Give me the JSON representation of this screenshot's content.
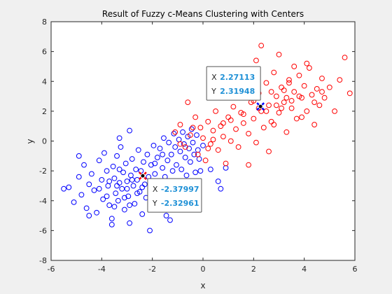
{
  "chart_data": {
    "type": "scatter",
    "title": "Result of Fuzzy c-Means Clustering with Centers",
    "xlabel": "x",
    "ylabel": "y",
    "xlim": [
      -6,
      6
    ],
    "ylim": [
      -8,
      8
    ],
    "xticks": [
      "-6",
      "-4",
      "-2",
      "0",
      "2",
      "4",
      "6"
    ],
    "yticks": [
      "-8",
      "-6",
      "-4",
      "-2",
      "0",
      "2",
      "4",
      "6",
      "8"
    ],
    "grid": false,
    "series": [
      {
        "color": "#0000ff",
        "marker": "circle-open",
        "points": [
          [
            -5.3,
            -3.1
          ],
          [
            -5.1,
            -4.1
          ],
          [
            -4.9,
            -2.4
          ],
          [
            -4.8,
            -3.6
          ],
          [
            -4.7,
            -1.6
          ],
          [
            -4.6,
            -4.5
          ],
          [
            -4.5,
            -2.9
          ],
          [
            -4.4,
            -2.2
          ],
          [
            -4.3,
            -3.3
          ],
          [
            -4.2,
            -4.8
          ],
          [
            -4.1,
            -1.3
          ],
          [
            -4.0,
            -2.6
          ],
          [
            -3.95,
            -3.9
          ],
          [
            -3.9,
            -0.8
          ],
          [
            -3.8,
            -2.0
          ],
          [
            -3.75,
            -3.0
          ],
          [
            -3.7,
            -4.3
          ],
          [
            -3.6,
            -5.2
          ],
          [
            -3.55,
            -1.7
          ],
          [
            -3.5,
            -2.5
          ],
          [
            -3.45,
            -3.5
          ],
          [
            -3.4,
            -1.0
          ],
          [
            -3.35,
            -4.0
          ],
          [
            -3.3,
            -2.8
          ],
          [
            -3.25,
            -0.4
          ],
          [
            -3.2,
            -3.2
          ],
          [
            -3.15,
            -2.1
          ],
          [
            -3.1,
            -4.6
          ],
          [
            -3.05,
            -1.5
          ],
          [
            -3.0,
            -2.7
          ],
          [
            -2.95,
            -3.7
          ],
          [
            -2.9,
            -5.5
          ],
          [
            -2.85,
            -2.3
          ],
          [
            -2.8,
            -1.2
          ],
          [
            -2.75,
            -3.0
          ],
          [
            -2.7,
            -4.2
          ],
          [
            -2.65,
            -1.9
          ],
          [
            -2.6,
            -2.6
          ],
          [
            -2.55,
            -0.6
          ],
          [
            -2.5,
            -3.4
          ],
          [
            -2.45,
            -2.0
          ],
          [
            -2.4,
            -4.9
          ],
          [
            -2.35,
            -1.4
          ],
          [
            -2.3,
            -2.9
          ],
          [
            -2.25,
            -3.8
          ],
          [
            -2.2,
            -0.9
          ],
          [
            -2.15,
            -2.4
          ],
          [
            -2.1,
            -6.0
          ],
          [
            -2.05,
            -1.6
          ],
          [
            -2.0,
            -3.1
          ],
          [
            -1.95,
            -0.3
          ],
          [
            -1.9,
            -2.2
          ],
          [
            -1.85,
            -4.4
          ],
          [
            -1.8,
            -1.1
          ],
          [
            -1.75,
            -2.7
          ],
          [
            -1.7,
            -0.5
          ],
          [
            -1.65,
            -3.3
          ],
          [
            -1.6,
            -1.8
          ],
          [
            -1.55,
            0.2
          ],
          [
            -1.5,
            -2.4
          ],
          [
            -1.45,
            -5.0
          ],
          [
            -1.4,
            -1.3
          ],
          [
            -1.35,
            -0.1
          ],
          [
            -1.3,
            -3.6
          ],
          [
            -1.25,
            -0.9
          ],
          [
            -1.2,
            -2.0
          ],
          [
            -1.15,
            0.5
          ],
          [
            -1.1,
            -0.4
          ],
          [
            -1.05,
            -1.6
          ],
          [
            -1.0,
            -2.8
          ],
          [
            -0.95,
            0.1
          ],
          [
            -0.9,
            -0.7
          ],
          [
            -0.85,
            -1.9
          ],
          [
            -0.8,
            0.6
          ],
          [
            -0.75,
            -0.2
          ],
          [
            -0.7,
            -1.1
          ],
          [
            -0.65,
            -2.3
          ],
          [
            -0.6,
            0.3
          ],
          [
            -0.55,
            -0.5
          ],
          [
            -0.5,
            -1.4
          ],
          [
            -0.45,
            0.8
          ],
          [
            -0.4,
            -0.1
          ],
          [
            -0.35,
            -0.9
          ],
          [
            -0.3,
            -2.1
          ],
          [
            -0.25,
            0.4
          ],
          [
            -0.2,
            -0.6
          ],
          [
            -0.15,
            -1.2
          ],
          [
            -0.1,
            -2.0
          ],
          [
            0.0,
            -0.3
          ],
          [
            0.3,
            -1.9
          ],
          [
            0.6,
            -2.7
          ],
          [
            0.9,
            -1.8
          ],
          [
            -3.3,
            0.2
          ],
          [
            -2.9,
            0.7
          ],
          [
            -4.5,
            -5.0
          ],
          [
            -3.6,
            -5.6
          ],
          [
            -2.0,
            -4.2
          ],
          [
            -1.3,
            -5.3
          ],
          [
            -5.5,
            -3.2
          ],
          [
            -4.9,
            -1.0
          ],
          [
            -1.6,
            -0.9
          ],
          [
            -1.9,
            -1.5
          ],
          [
            0.7,
            -3.2
          ],
          [
            -0.3,
            -4.6
          ],
          [
            -3.8,
            -3.7
          ],
          [
            -3.4,
            -3.0
          ],
          [
            -3.0,
            -3.2
          ],
          [
            -2.6,
            -3.5
          ],
          [
            -3.7,
            -2.7
          ],
          [
            -3.1,
            -3.8
          ],
          [
            -2.8,
            -2.6
          ],
          [
            -3.5,
            -4.4
          ],
          [
            -4.1,
            -3.2
          ],
          [
            -2.9,
            -4.3
          ],
          [
            -3.3,
            -1.9
          ],
          [
            -2.4,
            -3.1
          ]
        ]
      },
      {
        "color": "#ff0000",
        "marker": "circle-open",
        "points": [
          [
            -1.1,
            0.6
          ],
          [
            -0.9,
            1.1
          ],
          [
            -0.7,
            -0.4
          ],
          [
            -0.5,
            0.4
          ],
          [
            -0.3,
            1.6
          ],
          [
            -0.2,
            -0.9
          ],
          [
            -0.1,
            0.9
          ],
          [
            0.0,
            0.2
          ],
          [
            0.1,
            -1.3
          ],
          [
            0.2,
            1.3
          ],
          [
            0.3,
            -0.2
          ],
          [
            0.4,
            0.7
          ],
          [
            0.5,
            2.0
          ],
          [
            0.6,
            -0.6
          ],
          [
            0.7,
            1.0
          ],
          [
            0.8,
            0.3
          ],
          [
            0.9,
            -1.5
          ],
          [
            1.0,
            1.6
          ],
          [
            1.1,
            0.0
          ],
          [
            1.2,
            2.3
          ],
          [
            1.3,
            0.8
          ],
          [
            1.4,
            -0.4
          ],
          [
            1.5,
            1.9
          ],
          [
            1.6,
            1.2
          ],
          [
            1.7,
            3.0
          ],
          [
            1.8,
            0.5
          ],
          [
            1.9,
            2.6
          ],
          [
            2.0,
            1.5
          ],
          [
            2.1,
            -0.1
          ],
          [
            2.2,
            3.2
          ],
          [
            2.3,
            2.0
          ],
          [
            2.4,
            0.9
          ],
          [
            2.5,
            3.9
          ],
          [
            2.6,
            2.4
          ],
          [
            2.7,
            1.3
          ],
          [
            2.8,
            4.6
          ],
          [
            2.9,
            3.0
          ],
          [
            3.0,
            1.9
          ],
          [
            3.1,
            3.6
          ],
          [
            3.2,
            2.6
          ],
          [
            3.3,
            0.6
          ],
          [
            3.4,
            4.1
          ],
          [
            3.5,
            2.2
          ],
          [
            3.6,
            3.3
          ],
          [
            3.7,
            1.5
          ],
          [
            3.8,
            4.4
          ],
          [
            3.9,
            2.9
          ],
          [
            4.0,
            3.7
          ],
          [
            4.1,
            2.0
          ],
          [
            4.2,
            4.9
          ],
          [
            4.3,
            3.1
          ],
          [
            4.4,
            1.1
          ],
          [
            4.5,
            3.5
          ],
          [
            4.6,
            2.4
          ],
          [
            4.7,
            4.2
          ],
          [
            4.8,
            2.9
          ],
          [
            5.0,
            3.6
          ],
          [
            5.2,
            2.0
          ],
          [
            5.4,
            4.1
          ],
          [
            5.6,
            5.6
          ],
          [
            5.8,
            3.2
          ],
          [
            2.1,
            5.4
          ],
          [
            3.0,
            5.8
          ],
          [
            2.3,
            6.4
          ],
          [
            3.6,
            5.0
          ],
          [
            1.4,
            4.6
          ],
          [
            0.3,
            3.2
          ],
          [
            -0.6,
            2.6
          ],
          [
            -0.9,
            -0.2
          ],
          [
            1.8,
            -1.6
          ],
          [
            2.6,
            -0.7
          ],
          [
            4.1,
            5.2
          ],
          [
            3.3,
            2.9
          ],
          [
            2.9,
            2.4
          ],
          [
            3.5,
            2.7
          ],
          [
            3.1,
            2.2
          ],
          [
            2.7,
            3.3
          ],
          [
            3.8,
            3.0
          ],
          [
            2.5,
            2.0
          ],
          [
            3.2,
            3.4
          ],
          [
            1.6,
            1.8
          ],
          [
            2.0,
            2.7
          ],
          [
            1.1,
            1.4
          ],
          [
            0.8,
            1.2
          ],
          [
            0.4,
            0.1
          ],
          [
            -0.4,
            0.9
          ],
          [
            0.2,
            -0.5
          ],
          [
            1.9,
            3.8
          ],
          [
            4.4,
            2.6
          ],
          [
            3.9,
            1.6
          ],
          [
            2.8,
            1.1
          ],
          [
            3.4,
            3.9
          ],
          [
            4.7,
            3.3
          ],
          [
            2.2,
            2.2
          ]
        ]
      }
    ],
    "centers": [
      {
        "x": 2.27113,
        "y": 2.31948,
        "color": "#0000ff"
      },
      {
        "x": -2.37997,
        "y": -2.32961,
        "color": "#ff0000"
      }
    ],
    "datatips": [
      {
        "x_label": "X",
        "x_value": "2.27113",
        "y_label": "Y",
        "y_value": "2.31948",
        "anchor_x": 2.27113,
        "anchor_y": 2.31948
      },
      {
        "x_label": "X",
        "x_value": "-2.37997",
        "y_label": "Y",
        "y_value": "-2.32961",
        "anchor_x": -2.37997,
        "anchor_y": -2.32961
      }
    ]
  }
}
